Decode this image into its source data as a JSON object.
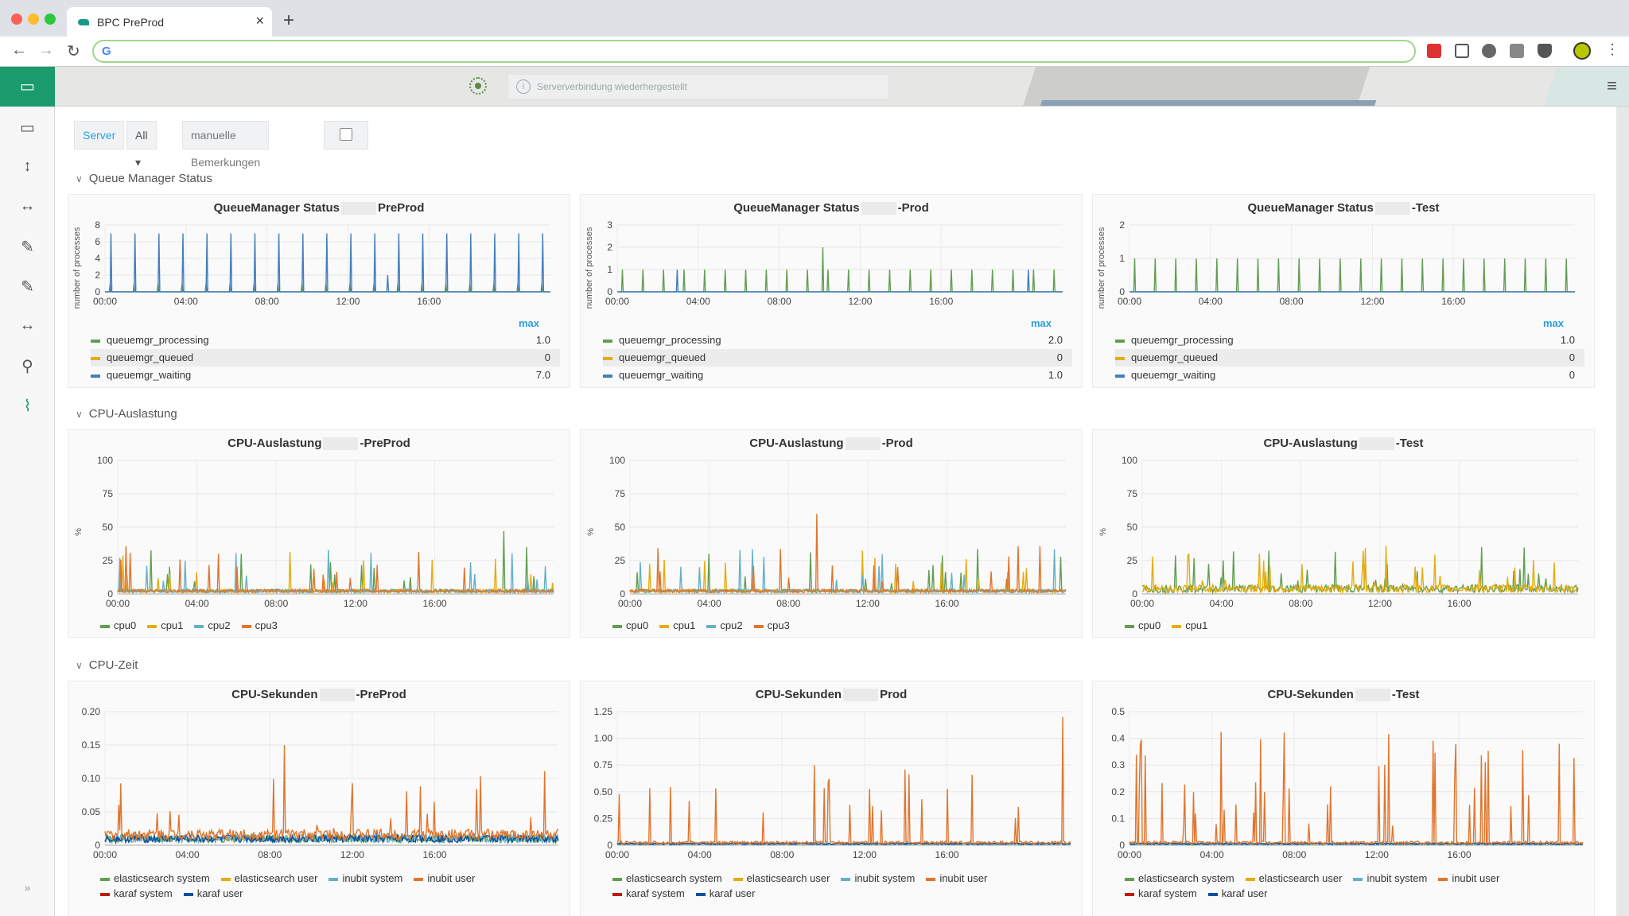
{
  "browser": {
    "tab_title": "BPC PreProd",
    "close_glyph": "×",
    "new_tab_glyph": "+",
    "back_glyph": "←",
    "forward_glyph": "→",
    "reload_glyph": "↻",
    "omnibox_logo": "G",
    "menu_glyph": "⋮"
  },
  "topbar": {
    "notice_text": "Serververbindung wiederhergestellt",
    "notice_icon": "info-icon",
    "menu_glyph": "≡"
  },
  "sidebar": {
    "icons": [
      "monitor-icon",
      "monitor-icon",
      "vertical-arrows-icon",
      "horizontal-arrows-icon",
      "pencil-icon",
      "pencil-icon",
      "horizontal-arrows-icon",
      "user-icon",
      "chart-icon"
    ],
    "glyphs": [
      "▭",
      "▭",
      "↕",
      "↔",
      "✎",
      "✎",
      "↔",
      "⚲",
      "⌇"
    ],
    "expand_glyph": "»"
  },
  "filters": {
    "server_label": "Server",
    "server_value": "All ▾",
    "remarks_label": "manuelle Bemerkungen"
  },
  "sections": [
    {
      "title": "Queue Manager Status",
      "chevron": "∨"
    },
    {
      "title": "CPU-Auslastung",
      "chevron": "∨"
    },
    {
      "title": "CPU-Zeit",
      "chevron": "∨"
    }
  ],
  "queue_panels": [
    {
      "title_left": "QueueManager Status",
      "title_right": "PreProd",
      "ylabel": "number of processes",
      "legend_header": "max",
      "legend": [
        {
          "name": "queuemgr_processing",
          "value": "1.0"
        },
        {
          "name": "queuemgr_queued",
          "value": "0"
        },
        {
          "name": "queuemgr_waiting",
          "value": "7.0"
        }
      ]
    },
    {
      "title_left": "QueueManager Status",
      "title_right": "-Prod",
      "ylabel": "number of processes",
      "legend_header": "max",
      "legend": [
        {
          "name": "queuemgr_processing",
          "value": "2.0"
        },
        {
          "name": "queuemgr_queued",
          "value": "0"
        },
        {
          "name": "queuemgr_waiting",
          "value": "1.0"
        }
      ]
    },
    {
      "title_left": "QueueManager Status",
      "title_right": "-Test",
      "ylabel": "number of processes",
      "legend_header": "max",
      "legend": [
        {
          "name": "queuemgr_processing",
          "value": "1.0"
        },
        {
          "name": "queuemgr_queued",
          "value": "0"
        },
        {
          "name": "queuemgr_waiting",
          "value": "0"
        }
      ]
    }
  ],
  "cpu_panels": [
    {
      "title_left": "CPU-Auslastung",
      "title_right": "-PreProd",
      "ylabel": "%",
      "legend": [
        "cpu0",
        "cpu1",
        "cpu2",
        "cpu3"
      ]
    },
    {
      "title_left": "CPU-Auslastung",
      "title_right": "-Prod",
      "ylabel": "%",
      "legend": [
        "cpu0",
        "cpu1",
        "cpu2",
        "cpu3"
      ]
    },
    {
      "title_left": "CPU-Auslastung",
      "title_right": "-Test",
      "ylabel": "%",
      "legend": [
        "cpu0",
        "cpu1"
      ]
    }
  ],
  "time_panels": [
    {
      "title_left": "CPU-Sekunden",
      "title_right": "-PreProd",
      "legend": [
        "elasticsearch system",
        "elasticsearch user",
        "inubit system",
        "inubit user",
        "karaf system",
        "karaf user"
      ]
    },
    {
      "title_left": "CPU-Sekunden",
      "title_right": "Prod",
      "legend": [
        "elasticsearch system",
        "elasticsearch user",
        "inubit system",
        "inubit user",
        "karaf system",
        "karaf user"
      ]
    },
    {
      "title_left": "CPU-Sekunden",
      "title_right": "-Test",
      "legend": [
        "elasticsearch system",
        "elasticsearch user",
        "inubit system",
        "inubit user",
        "karaf system",
        "karaf user"
      ]
    }
  ],
  "colors": {
    "green": "#629e51",
    "yellow": "#e5ac0e",
    "blue": "#447ebc",
    "cyan": "#64b0c8",
    "orange": "#e0752d",
    "red": "#bf1b00",
    "darkblue": "#0a50a1",
    "accent": "#1b9a6c"
  },
  "chart_data": [
    {
      "type": "line",
      "title": "QueueManager Status PreProd",
      "ylabel": "number of processes",
      "x": [
        "00:00",
        "04:00",
        "08:00",
        "12:00",
        "16:00"
      ],
      "ylim": [
        0,
        8
      ],
      "yticks": [
        0,
        2,
        4,
        6,
        8
      ],
      "series": [
        {
          "name": "queuemgr_processing",
          "max": 1.0
        },
        {
          "name": "queuemgr_queued",
          "max": 0
        },
        {
          "name": "queuemgr_waiting",
          "max": 7.0
        }
      ]
    },
    {
      "type": "line",
      "title": "QueueManager Status -Prod",
      "ylabel": "number of processes",
      "x": [
        "00:00",
        "04:00",
        "08:00",
        "12:00",
        "16:00"
      ],
      "ylim": [
        0,
        3
      ],
      "yticks": [
        0,
        1,
        2,
        3
      ],
      "series": [
        {
          "name": "queuemgr_processing",
          "max": 2.0
        },
        {
          "name": "queuemgr_queued",
          "max": 0
        },
        {
          "name": "queuemgr_waiting",
          "max": 1.0
        }
      ]
    },
    {
      "type": "line",
      "title": "QueueManager Status -Test",
      "ylabel": "number of processes",
      "x": [
        "00:00",
        "04:00",
        "08:00",
        "12:00",
        "16:00"
      ],
      "ylim": [
        0,
        2
      ],
      "yticks": [
        0,
        1,
        2
      ],
      "series": [
        {
          "name": "queuemgr_processing",
          "max": 1.0
        },
        {
          "name": "queuemgr_queued",
          "max": 0
        },
        {
          "name": "queuemgr_waiting",
          "max": 0
        }
      ]
    },
    {
      "type": "line",
      "title": "CPU-Auslastung -PreProd",
      "ylabel": "%",
      "x": [
        "00:00",
        "04:00",
        "08:00",
        "12:00",
        "16:00"
      ],
      "ylim": [
        0,
        100
      ],
      "yticks": [
        0,
        25,
        50,
        75,
        100
      ],
      "series": [
        {
          "name": "cpu0"
        },
        {
          "name": "cpu1"
        },
        {
          "name": "cpu2"
        },
        {
          "name": "cpu3"
        }
      ]
    },
    {
      "type": "line",
      "title": "CPU-Auslastung -Prod",
      "ylabel": "%",
      "x": [
        "00:00",
        "04:00",
        "08:00",
        "12:00",
        "16:00"
      ],
      "ylim": [
        0,
        100
      ],
      "yticks": [
        0,
        25,
        50,
        75,
        100
      ],
      "series": [
        {
          "name": "cpu0"
        },
        {
          "name": "cpu1"
        },
        {
          "name": "cpu2"
        },
        {
          "name": "cpu3"
        }
      ]
    },
    {
      "type": "line",
      "title": "CPU-Auslastung -Test",
      "ylabel": "%",
      "x": [
        "00:00",
        "04:00",
        "08:00",
        "12:00",
        "16:00"
      ],
      "ylim": [
        0,
        100
      ],
      "yticks": [
        0,
        25,
        50,
        75,
        100
      ],
      "series": [
        {
          "name": "cpu0"
        },
        {
          "name": "cpu1"
        }
      ]
    },
    {
      "type": "line",
      "title": "CPU-Sekunden -PreProd",
      "x": [
        "00:00",
        "04:00",
        "08:00",
        "12:00",
        "16:00"
      ],
      "ylim": [
        0,
        0.2
      ],
      "yticks": [
        0,
        0.05,
        0.1,
        0.15,
        0.2
      ]
    },
    {
      "type": "line",
      "title": "CPU-Sekunden Prod",
      "x": [
        "00:00",
        "04:00",
        "08:00",
        "12:00",
        "16:00"
      ],
      "ylim": [
        0,
        1.25
      ],
      "yticks": [
        0,
        0.25,
        0.5,
        0.75,
        1.0,
        1.25
      ]
    },
    {
      "type": "line",
      "title": "CPU-Sekunden -Test",
      "x": [
        "00:00",
        "04:00",
        "08:00",
        "12:00",
        "16:00"
      ],
      "ylim": [
        0,
        0.5
      ],
      "yticks": [
        0,
        0.1,
        0.2,
        0.3,
        0.4,
        0.5
      ]
    }
  ]
}
